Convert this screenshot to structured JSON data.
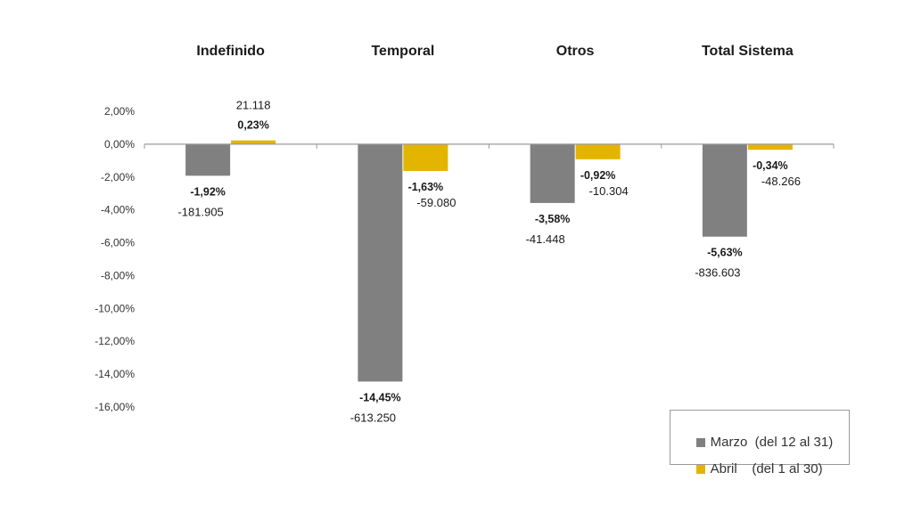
{
  "chart_data": {
    "type": "bar",
    "categories": [
      "Indefinido",
      "Temporal",
      "Otros",
      "Total Sistema"
    ],
    "series": [
      {
        "name": "Marzo  (del 12 al 31)",
        "color": "#808080",
        "values": [
          -1.92,
          -14.45,
          -3.58,
          -5.63
        ],
        "value_labels": [
          "-1,92%",
          "-14,45%",
          "-3,58%",
          "-5,63%"
        ],
        "count_labels": [
          "-181.905",
          "-613.250",
          "-41.448",
          "-836.603"
        ]
      },
      {
        "name": "Abril    (del 1 al 30)",
        "color": "#E3B500",
        "values": [
          0.23,
          -1.63,
          -0.92,
          -0.34
        ],
        "value_labels": [
          "0,23%",
          "-1,63%",
          "-0,92%",
          "-0,34%"
        ],
        "count_labels": [
          "21.118",
          "-59.080",
          "-10.304",
          "-48.266"
        ]
      }
    ],
    "ylim": [
      -16,
      2
    ],
    "yticks": [
      2,
      0,
      -2,
      -4,
      -6,
      -8,
      -10,
      -12,
      -14,
      -16
    ],
    "ytick_labels": [
      "2,00%",
      "0,00%",
      "-2,00%",
      "-4,00%",
      "-6,00%",
      "-8,00%",
      "-10,00%",
      "-12,00%",
      "-14,00%",
      "-16,00%"
    ],
    "grid": false,
    "legend_position": "bottom-right"
  },
  "legend": {
    "items": [
      {
        "label": "Marzo  (del 12 al 31)",
        "color": "#808080"
      },
      {
        "label": "Abril    (del 1 al 30)",
        "color": "#E3B500"
      }
    ]
  }
}
